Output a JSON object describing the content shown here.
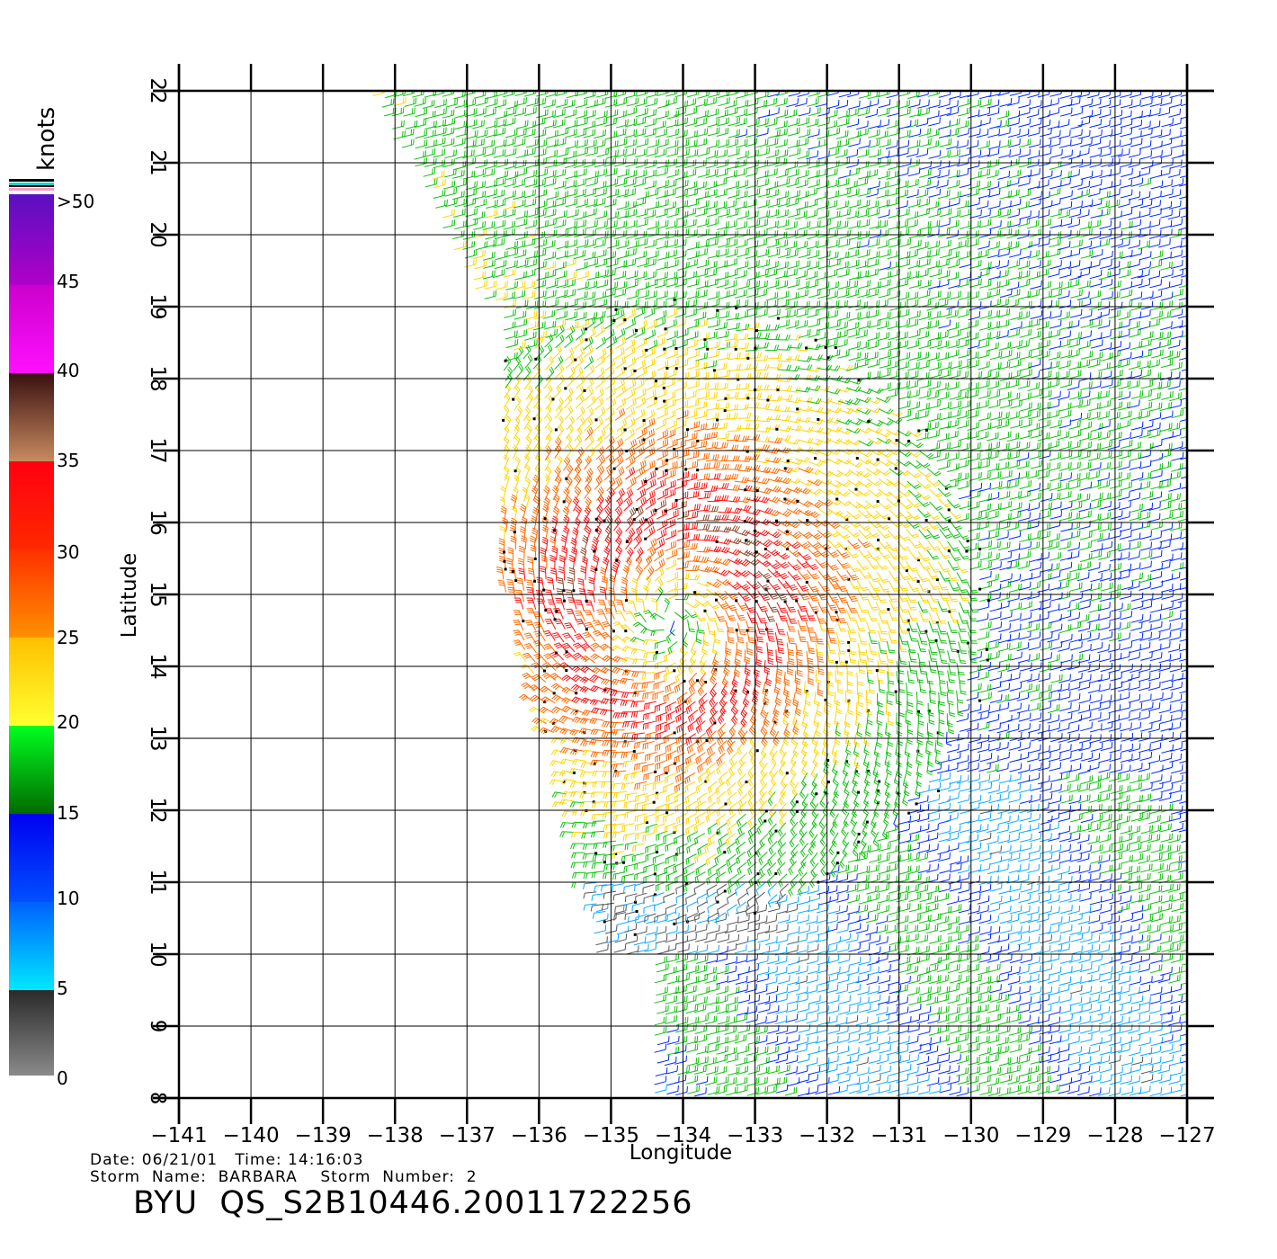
{
  "chart_data": {
    "type": "wind-barbs",
    "title": "",
    "xlabel": "Longitude",
    "ylabel": "Latitude",
    "xlim": [
      -141,
      -127
    ],
    "ylim": [
      8,
      22
    ],
    "x_ticks": [
      "-141",
      "-140",
      "-139",
      "-138",
      "-137",
      "-136",
      "-135",
      "-134",
      "-133",
      "-132",
      "-131",
      "-130",
      "-129",
      "-128",
      "-127"
    ],
    "y_ticks": [
      "8",
      "9",
      "10",
      "11",
      "12",
      "13",
      "14",
      "15",
      "16",
      "17",
      "18",
      "19",
      "20",
      "21",
      "22"
    ],
    "grid": true,
    "storm_center": {
      "lon": -134.2,
      "lat": 14.7
    },
    "colorbar": {
      "title": "knots",
      "labels": [
        ">50",
        "45",
        "40",
        "35",
        "30",
        "25",
        "20",
        "15",
        "10",
        "5",
        "0"
      ],
      "ranges": [
        {
          "min": 0,
          "max": 5,
          "color": "#555555"
        },
        {
          "min": 5,
          "max": 10,
          "color": "#0aa8ff"
        },
        {
          "min": 10,
          "max": 15,
          "color": "#0028ff"
        },
        {
          "min": 15,
          "max": 20,
          "color": "#10c010"
        },
        {
          "min": 20,
          "max": 25,
          "color": "#ffd600"
        },
        {
          "min": 25,
          "max": 30,
          "color": "#ff6a00"
        },
        {
          "min": 30,
          "max": 35,
          "color": "#ff1010"
        },
        {
          "min": 35,
          "max": 40,
          "color": "#8a4a2a"
        },
        {
          "min": 40,
          "max": 45,
          "color": "#ee00ee"
        },
        {
          "min": 45,
          "max": 50,
          "color": "#8a10d0"
        }
      ]
    }
  },
  "info": {
    "date_line": "Date: 06/21/01   Time: 14:16:03",
    "storm_line": "Storm  Name:  BARBARA    Storm  Number:  2",
    "product_id": "BYU  QS_S2B10446.20011722256"
  }
}
